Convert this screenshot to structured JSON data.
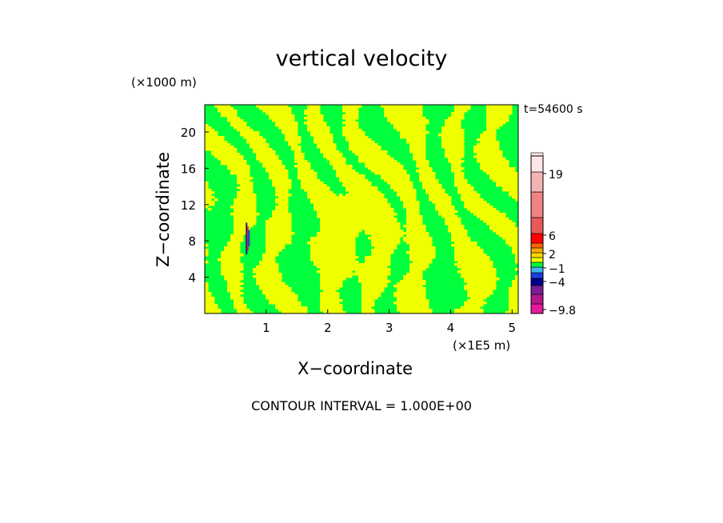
{
  "chart_data": {
    "type": "heatmap",
    "title": "vertical velocity",
    "xlabel": "X−coordinate",
    "ylabel": "Z−coordinate",
    "x_unit": "(×1E5 m)",
    "y_unit": "(×1000 m)",
    "time_label": "t=54600 s",
    "contour_label": "CONTOUR INTERVAL = 1.000E+00",
    "x_range": [
      0,
      5.1
    ],
    "y_range": [
      0,
      23
    ],
    "x_ticks": [
      "1",
      "2",
      "3",
      "4",
      "5"
    ],
    "x_tick_values": [
      1,
      2,
      3,
      4,
      5
    ],
    "y_ticks": [
      "4",
      "8",
      "12",
      "16",
      "20"
    ],
    "y_tick_values": [
      4,
      8,
      12,
      16,
      20
    ],
    "colorbar_labels": [
      "19",
      "6",
      "2",
      "−1",
      "−4",
      "−9.8"
    ],
    "colorbar_label_values": [
      19,
      6,
      2,
      -1,
      -4,
      -9.8
    ],
    "colorbar_colors": [
      "#e6199b",
      "#b4198c",
      "#7a1e96",
      "#00008c",
      "#1e3cdc",
      "#3cb4f0",
      "#00ff3c",
      "#f0ff00",
      "#ffd700",
      "#ffaa00",
      "#ff6400",
      "#ff0000",
      "#e85a5a",
      "#f08282",
      "#f5b4b4",
      "#fde6e6"
    ],
    "field_colors": {
      "positive": "#f0ff00",
      "negative": "#00ff3c"
    }
  }
}
